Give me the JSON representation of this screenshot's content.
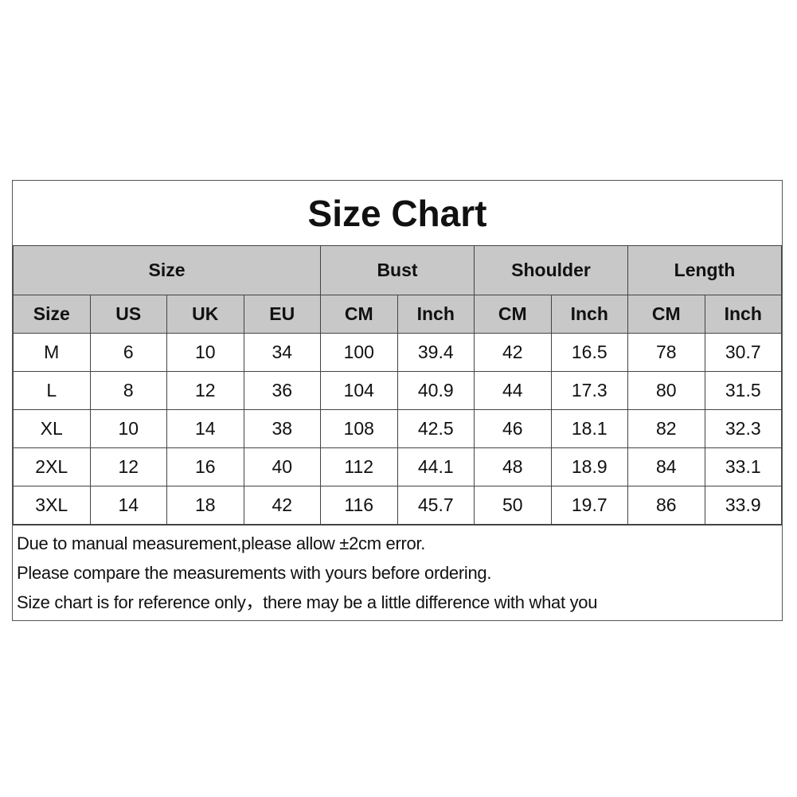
{
  "title": "Size Chart",
  "group_headers": [
    "Size",
    "Bust",
    "Shoulder",
    "Length"
  ],
  "sub_headers": [
    "Size",
    "US",
    "UK",
    "EU",
    "CM",
    "Inch",
    "CM",
    "Inch",
    "CM",
    "Inch"
  ],
  "rows": [
    [
      "M",
      "6",
      "10",
      "34",
      "100",
      "39.4",
      "42",
      "16.5",
      "78",
      "30.7"
    ],
    [
      "L",
      "8",
      "12",
      "36",
      "104",
      "40.9",
      "44",
      "17.3",
      "80",
      "31.5"
    ],
    [
      "XL",
      "10",
      "14",
      "38",
      "108",
      "42.5",
      "46",
      "18.1",
      "82",
      "32.3"
    ],
    [
      "2XL",
      "12",
      "16",
      "40",
      "112",
      "44.1",
      "48",
      "18.9",
      "84",
      "33.1"
    ],
    [
      "3XL",
      "14",
      "18",
      "42",
      "116",
      "45.7",
      "50",
      "19.7",
      "86",
      "33.9"
    ]
  ],
  "notes": [
    "Due to manual measurement,please allow ±2cm error.",
    "Please compare the measurements with yours before ordering.",
    "Size chart is for reference only，there may be a little difference with what you"
  ],
  "colors": {
    "header_bg": "#c8c8c8",
    "border": "#444444"
  }
}
